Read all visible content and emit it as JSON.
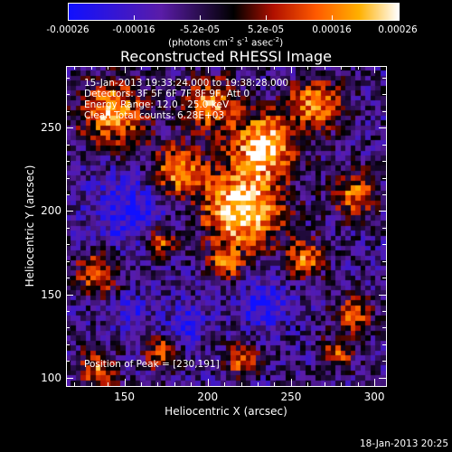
{
  "colorbar": {
    "tick_labels": [
      "-0.00026",
      "-0.00016",
      "-5.2e-05",
      "5.2e-05",
      "0.00016",
      "0.00026"
    ],
    "units": "(photons cm",
    "units_exp1": "-2",
    "units_mid": " s",
    "units_exp2": "-1",
    "units_end": " asec",
    "units_exp3": "-2",
    "units_close": ")",
    "range": [
      -0.00026,
      0.00026
    ],
    "colors": [
      "#1010ff",
      "#5a1ca8",
      "#000000",
      "#b01000",
      "#ff5a00",
      "#ffb000",
      "#ffffff"
    ]
  },
  "plot": {
    "title": "Reconstructed RHESSI Image",
    "info_lines": [
      "15-Jan-2013 19:33:24.000 to 19:38:28.000",
      "Detectors: 3F 5F 6F 7F 8F 9F, Att 0",
      "Energy Range: 12.0 - 25.0 keV",
      "Clean     Total counts: 6.28E+03"
    ],
    "peak_label": "Position of Peak = [230,191]",
    "xlabel": "Heliocentric X (arcsec)",
    "ylabel": "Heliocentric Y (arcsec)",
    "x_ticks": [
      "150",
      "200",
      "250",
      "300"
    ],
    "y_ticks": [
      "100",
      "150",
      "200",
      "250"
    ],
    "xlim": [
      115,
      307
    ],
    "ylim": [
      95,
      287
    ]
  },
  "footer": {
    "date": "18-Jan-2013 20:25"
  }
}
